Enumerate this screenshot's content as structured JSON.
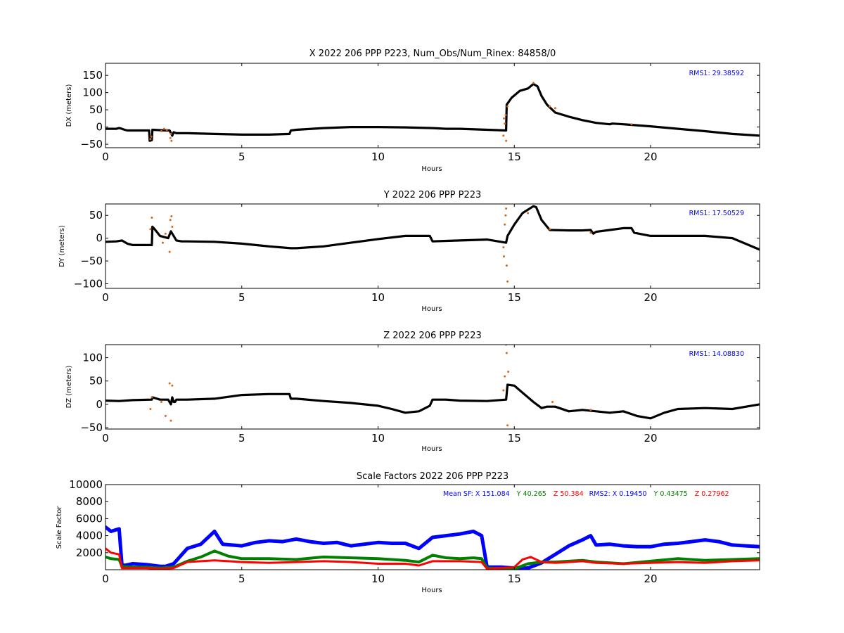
{
  "colors": {
    "data": "#000000",
    "outlier": "#d2691e",
    "rms": "#0000ff",
    "sf_x": "#0000ff",
    "sf_y": "#008000",
    "sf_z": "#ff0000"
  },
  "chart_data": [
    {
      "type": "scatter",
      "title": "X 2022 206 PPP  P223, Num_Obs/Num_Rinex: 84858/0",
      "xlabel": "Hours",
      "ylabel": "DX (meters)",
      "xlim": [
        0,
        24
      ],
      "ylim": [
        -60,
        185
      ],
      "xticks": [
        0,
        5,
        10,
        15,
        20
      ],
      "yticks": [
        -50,
        0,
        50,
        100,
        150
      ],
      "annotation": "RMS1: 29.38592",
      "series": [
        {
          "role": "data",
          "x": [
            0,
            0.4,
            0.5,
            0.6,
            0.7,
            0.8,
            1.6,
            1.62,
            1.7,
            1.72,
            2.2,
            2.35,
            2.45,
            2.5,
            2.6,
            3,
            4,
            5,
            6,
            6.75,
            6.8,
            7,
            8,
            9,
            10,
            11,
            12,
            12.5,
            13,
            14,
            14.7,
            14.72,
            14.9,
            15.2,
            15.5,
            15.7,
            15.85,
            16,
            16.2,
            16.5,
            17,
            17.5,
            18,
            18.5,
            18.6,
            19,
            20,
            21,
            22,
            23,
            24
          ],
          "y": [
            -5,
            -5,
            -3,
            -5,
            -8,
            -10,
            -10,
            -40,
            -38,
            -8,
            -10,
            -10,
            -25,
            -15,
            -18,
            -18,
            -20,
            -22,
            -22,
            -20,
            -10,
            -8,
            -3,
            0,
            0,
            -1,
            -3,
            -5,
            -5,
            -8,
            -10,
            65,
            85,
            105,
            112,
            125,
            118,
            90,
            65,
            42,
            30,
            20,
            12,
            8,
            10,
            8,
            2,
            -5,
            -12,
            -20,
            -25
          ]
        },
        {
          "role": "outliers",
          "x": [
            1.65,
            1.68,
            2.05,
            2.15,
            2.25,
            2.38,
            2.4,
            2.42,
            14.6,
            14.62,
            14.65,
            14.68,
            14.7,
            14.75,
            15.7,
            16.3,
            16.5,
            19.3
          ],
          "y": [
            -35,
            -28,
            -12,
            -5,
            -8,
            -32,
            -20,
            -40,
            -25,
            25,
            10,
            35,
            -40,
            60,
            128,
            60,
            55,
            8
          ]
        }
      ]
    },
    {
      "type": "scatter",
      "title": "Y 2022 206 PPP  P223",
      "xlabel": "Hours",
      "ylabel": "DY (meters)",
      "xlim": [
        0,
        24
      ],
      "ylim": [
        -110,
        75
      ],
      "xticks": [
        0,
        5,
        10,
        15,
        20
      ],
      "yticks": [
        -100,
        -50,
        0,
        50
      ],
      "annotation": "RMS1: 17.50529",
      "series": [
        {
          "role": "data",
          "x": [
            0,
            0.4,
            0.6,
            0.8,
            1,
            1.7,
            1.72,
            1.8,
            2,
            2.3,
            2.4,
            2.5,
            2.6,
            2.8,
            3,
            4,
            5,
            6,
            6.8,
            7,
            8,
            9,
            10,
            11,
            11.9,
            12,
            12.5,
            13,
            14,
            14.7,
            14.75,
            15,
            15.3,
            15.7,
            15.8,
            16,
            16.3,
            17,
            17.5,
            17.8,
            17.9,
            18,
            18.5,
            19,
            19.3,
            19.4,
            20,
            21,
            22,
            23,
            24
          ],
          "y": [
            -8,
            -7,
            -5,
            -12,
            -15,
            -15,
            25,
            20,
            5,
            0,
            15,
            5,
            -5,
            -7,
            -7,
            -8,
            -12,
            -18,
            -22,
            -22,
            -18,
            -10,
            -2,
            5,
            5,
            -7,
            -6,
            -5,
            -3,
            -10,
            5,
            30,
            55,
            70,
            68,
            40,
            18,
            17,
            17,
            18,
            10,
            14,
            18,
            22,
            22,
            12,
            5,
            5,
            5,
            0,
            -25
          ]
        },
        {
          "role": "outliers",
          "x": [
            1.65,
            1.7,
            2.1,
            2.2,
            2.35,
            2.38,
            2.42,
            2.45,
            14.6,
            14.62,
            14.65,
            14.68,
            14.7,
            14.72,
            14.75,
            15.5,
            16.3,
            17.8
          ],
          "y": [
            20,
            45,
            -10,
            10,
            -30,
            40,
            48,
            25,
            -20,
            -40,
            30,
            50,
            65,
            -60,
            -95,
            55,
            20,
            12
          ]
        }
      ]
    },
    {
      "type": "scatter",
      "title": "Z 2022 206 PPP  P223",
      "xlabel": "Hours",
      "ylabel": "DZ (meters)",
      "xlim": [
        0,
        24
      ],
      "ylim": [
        -53,
        128
      ],
      "xticks": [
        0,
        5,
        10,
        15,
        20
      ],
      "yticks": [
        -50,
        0,
        50,
        100
      ],
      "annotation": "RMS1: 14.08830",
      "series": [
        {
          "role": "data",
          "x": [
            0,
            0.5,
            1,
            1.7,
            1.72,
            2,
            2.3,
            2.4,
            2.45,
            2.5,
            2.55,
            2.6,
            3,
            4,
            5,
            6,
            6.75,
            6.8,
            7,
            8,
            9,
            10,
            10.5,
            11,
            11.5,
            11.9,
            12,
            12.5,
            13,
            14,
            14.7,
            14.75,
            15,
            15.3,
            15.7,
            16,
            16.2,
            16.5,
            17,
            17.5,
            18,
            18.5,
            19,
            19.5,
            20,
            20.5,
            21,
            22,
            23,
            24
          ],
          "y": [
            8,
            7,
            9,
            10,
            15,
            10,
            10,
            0,
            15,
            5,
            5,
            10,
            10,
            12,
            20,
            22,
            22,
            12,
            12,
            7,
            3,
            -3,
            -10,
            -18,
            -15,
            -3,
            10,
            10,
            8,
            7,
            10,
            42,
            40,
            25,
            5,
            -8,
            -5,
            -5,
            -15,
            -12,
            -15,
            -18,
            -15,
            -25,
            -30,
            -18,
            -10,
            -8,
            -10,
            0
          ]
        },
        {
          "role": "outliers",
          "x": [
            1.65,
            1.7,
            2.05,
            2.2,
            2.35,
            2.4,
            2.45,
            14.6,
            14.65,
            14.7,
            14.72,
            14.75,
            14.78,
            16.4,
            17.8
          ],
          "y": [
            -10,
            15,
            5,
            -25,
            45,
            -35,
            40,
            30,
            60,
            128,
            110,
            -45,
            70,
            5,
            -12
          ]
        }
      ]
    },
    {
      "type": "scatter",
      "title": "Scale Factors 2022 206 PPP  P223",
      "xlabel": "Hours",
      "ylabel": "Scale Factor",
      "xlim": [
        0,
        24
      ],
      "ylim": [
        0,
        10000
      ],
      "xticks": [
        0,
        5,
        10,
        15,
        20
      ],
      "yticks": [
        2000,
        4000,
        6000,
        8000,
        10000
      ],
      "annotations": [
        "Mean SF: X 151.084",
        "Y  40.265",
        "Z  50.384",
        "RMS2: X  0.19450",
        "Y  0.43475",
        "Z  0.27962"
      ],
      "series": [
        {
          "name": "X",
          "x": [
            0,
            0.2,
            0.5,
            0.6,
            0.7,
            1,
            1.5,
            2,
            2.2,
            2.5,
            3,
            3.5,
            4,
            4.3,
            5,
            5.5,
            6,
            6.5,
            7,
            7.5,
            8,
            8.5,
            9,
            9.5,
            10,
            10.5,
            11,
            11.5,
            12,
            12.5,
            13,
            13.5,
            13.8,
            14,
            14.5,
            15,
            15.5,
            16,
            16.5,
            17,
            17.5,
            17.8,
            18,
            18.5,
            19,
            19.5,
            20,
            20.5,
            21,
            21.5,
            22,
            22.5,
            23,
            23.5,
            24
          ],
          "y": [
            5000,
            4500,
            4800,
            600,
            500,
            700,
            600,
            400,
            400,
            700,
            2500,
            3000,
            4500,
            3000,
            2800,
            3200,
            3400,
            3300,
            3600,
            3300,
            3100,
            3200,
            2800,
            3000,
            3200,
            3100,
            3100,
            2500,
            3800,
            4000,
            4200,
            4500,
            4000,
            300,
            300,
            200,
            200,
            800,
            1800,
            2800,
            3500,
            4000,
            2900,
            3000,
            2800,
            2700,
            2700,
            3000,
            3100,
            3300,
            3500,
            3300,
            2900,
            2800,
            2700
          ]
        },
        {
          "name": "Y",
          "x": [
            0,
            0.2,
            0.5,
            0.6,
            1,
            1.5,
            2,
            2.5,
            3,
            3.5,
            4,
            4.5,
            5,
            6,
            7,
            8,
            9,
            10,
            11,
            11.5,
            12,
            12.5,
            13,
            13.5,
            13.8,
            14,
            15,
            15.5,
            16,
            16.5,
            17,
            17.5,
            18,
            18.5,
            19,
            20,
            21,
            22,
            23,
            24
          ],
          "y": [
            1500,
            1300,
            1200,
            400,
            300,
            300,
            200,
            300,
            1000,
            1500,
            2200,
            1600,
            1300,
            1300,
            1200,
            1500,
            1400,
            1300,
            1100,
            900,
            1700,
            1400,
            1300,
            1400,
            1300,
            200,
            100,
            700,
            900,
            900,
            1000,
            1100,
            900,
            800,
            700,
            1000,
            1300,
            1100,
            1200,
            1300
          ]
        },
        {
          "name": "Z",
          "x": [
            0,
            0.2,
            0.5,
            0.6,
            1,
            1.5,
            2,
            2.5,
            3,
            3.5,
            4,
            4.5,
            5,
            6,
            7,
            8,
            9,
            10,
            11,
            11.5,
            12,
            13,
            13.8,
            14,
            15,
            15.3,
            15.6,
            16,
            16.5,
            17,
            17.5,
            18,
            19,
            20,
            21,
            22,
            23,
            24
          ],
          "y": [
            2500,
            2000,
            1800,
            200,
            200,
            200,
            100,
            200,
            900,
            1000,
            1100,
            1000,
            900,
            800,
            900,
            1000,
            900,
            700,
            700,
            500,
            1000,
            1000,
            900,
            100,
            300,
            1200,
            1500,
            900,
            800,
            900,
            1000,
            800,
            700,
            800,
            900,
            800,
            1000,
            1100
          ]
        }
      ]
    }
  ]
}
